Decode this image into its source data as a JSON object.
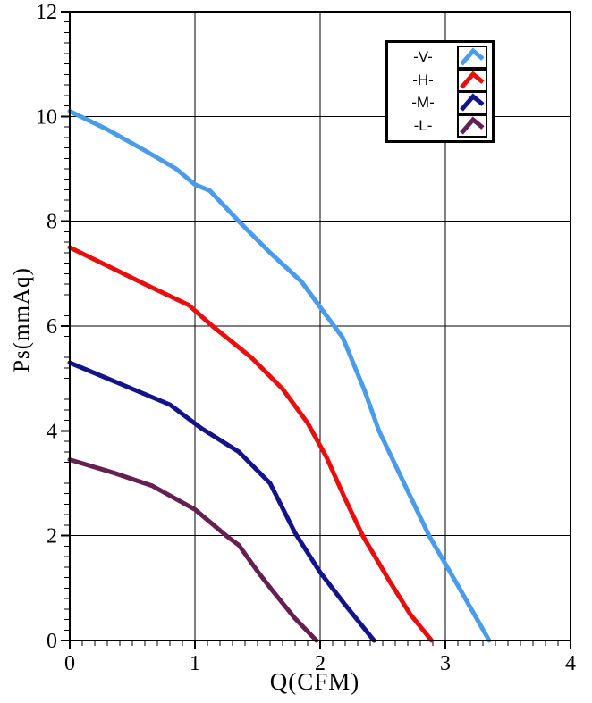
{
  "chart_data": {
    "type": "line",
    "title": "",
    "xlabel": "Q(CFM)",
    "ylabel": "Ps(mmAq)",
    "xlim": [
      0,
      4
    ],
    "ylim": [
      0,
      12
    ],
    "x_major_ticks": [
      0,
      1,
      2,
      3,
      4
    ],
    "y_major_ticks": [
      0,
      2,
      4,
      6,
      8,
      10,
      12
    ],
    "x_minor_step": 0.1,
    "y_minor_step": 0.2,
    "grid": "major-both",
    "legend_position": "top-right-inside",
    "axis_color": "#000000",
    "grid_color": "#000000",
    "series": [
      {
        "name": "-V-",
        "color": "#4A9BEA",
        "points": [
          [
            0,
            10.1
          ],
          [
            0.3,
            9.75
          ],
          [
            0.6,
            9.35
          ],
          [
            0.85,
            9.0
          ],
          [
            1.0,
            8.7
          ],
          [
            1.12,
            8.58
          ],
          [
            1.35,
            8.0
          ],
          [
            1.6,
            7.4
          ],
          [
            1.85,
            6.85
          ],
          [
            2.05,
            6.2
          ],
          [
            2.18,
            5.78
          ],
          [
            2.35,
            4.8
          ],
          [
            2.47,
            4.0
          ],
          [
            2.65,
            3.1
          ],
          [
            2.87,
            2.0
          ],
          [
            3.1,
            1.05
          ],
          [
            3.35,
            0
          ]
        ]
      },
      {
        "name": "-H-",
        "color": "#E90E0E",
        "points": [
          [
            0,
            7.5
          ],
          [
            0.3,
            7.15
          ],
          [
            0.6,
            6.8
          ],
          [
            0.95,
            6.4
          ],
          [
            1.14,
            6.0
          ],
          [
            1.45,
            5.4
          ],
          [
            1.7,
            4.8
          ],
          [
            1.9,
            4.15
          ],
          [
            2.05,
            3.5
          ],
          [
            2.2,
            2.7
          ],
          [
            2.34,
            2.0
          ],
          [
            2.55,
            1.15
          ],
          [
            2.72,
            0.5
          ],
          [
            2.89,
            0
          ]
        ]
      },
      {
        "name": "-M-",
        "color": "#14148A",
        "points": [
          [
            0,
            5.3
          ],
          [
            0.4,
            4.9
          ],
          [
            0.8,
            4.5
          ],
          [
            1.05,
            4.05
          ],
          [
            1.35,
            3.6
          ],
          [
            1.6,
            3.0
          ],
          [
            1.8,
            2.05
          ],
          [
            2.0,
            1.3
          ],
          [
            2.2,
            0.68
          ],
          [
            2.43,
            0
          ]
        ]
      },
      {
        "name": "-L-",
        "color": "#652052",
        "points": [
          [
            0,
            3.45
          ],
          [
            0.35,
            3.2
          ],
          [
            0.66,
            2.95
          ],
          [
            1.0,
            2.5
          ],
          [
            1.25,
            2.0
          ],
          [
            1.35,
            1.82
          ],
          [
            1.5,
            1.32
          ],
          [
            1.62,
            0.95
          ],
          [
            1.8,
            0.42
          ],
          [
            1.97,
            0
          ]
        ]
      }
    ]
  }
}
